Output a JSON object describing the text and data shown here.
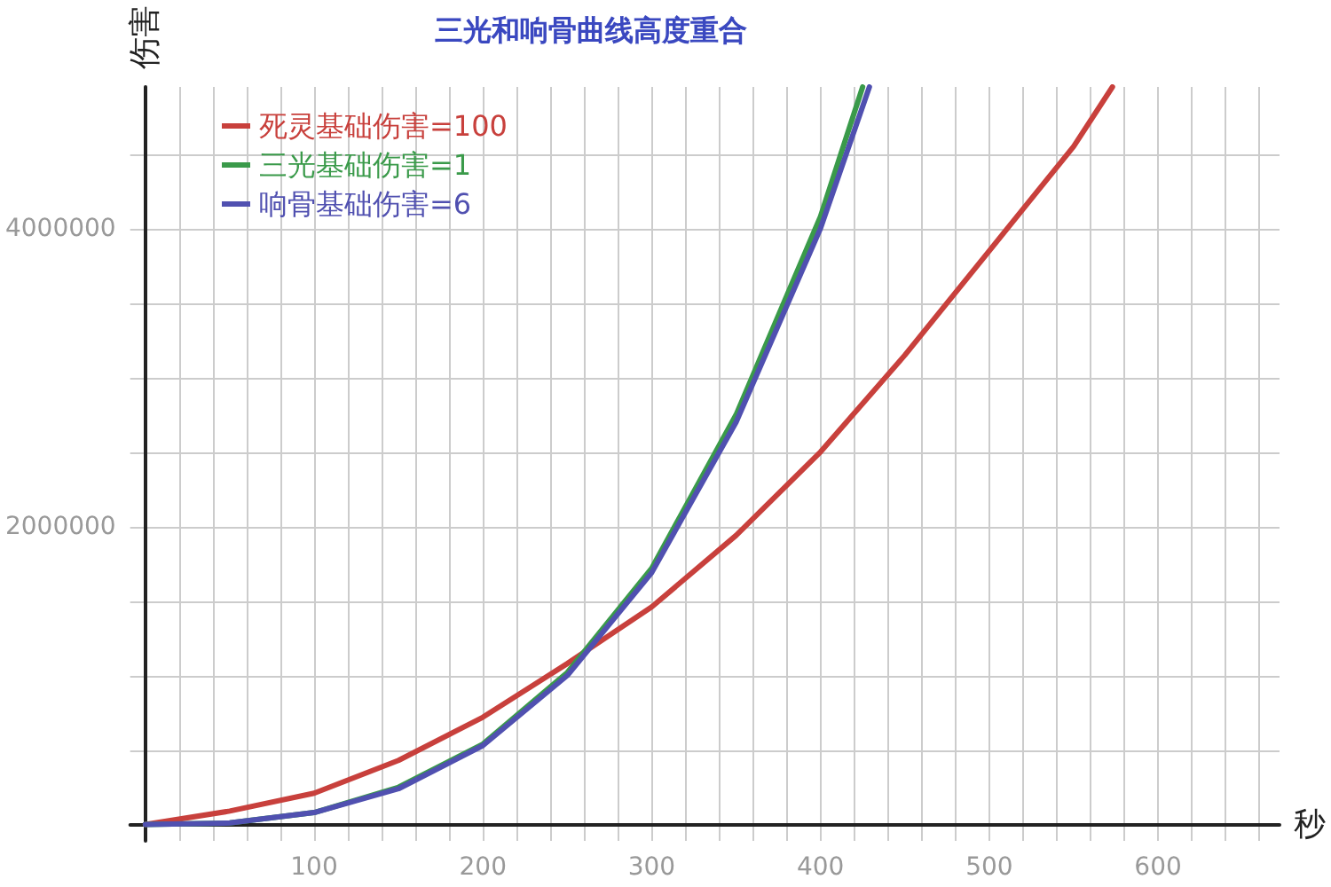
{
  "chart_data": {
    "type": "line",
    "title": "三光和响骨曲线高度重合",
    "xlabel": "秒",
    "ylabel": "伤害",
    "xlim": [
      -9,
      672
    ],
    "ylim": [
      -110000,
      4950000
    ],
    "xticks": [
      {
        "value": 0,
        "label": null
      },
      {
        "value": 20,
        "label": null
      },
      {
        "value": 40,
        "label": null
      },
      {
        "value": 60,
        "label": null
      },
      {
        "value": 80,
        "label": null
      },
      100,
      {
        "value": 120,
        "label": null
      },
      {
        "value": 140,
        "label": null
      },
      {
        "value": 160,
        "label": null
      },
      {
        "value": 180,
        "label": null
      },
      200,
      {
        "value": 220,
        "label": null
      },
      {
        "value": 240,
        "label": null
      },
      {
        "value": 260,
        "label": null
      },
      {
        "value": 280,
        "label": null
      },
      300,
      {
        "value": 320,
        "label": null
      },
      {
        "value": 340,
        "label": null
      },
      {
        "value": 360,
        "label": null
      },
      {
        "value": 380,
        "label": null
      },
      400,
      {
        "value": 420,
        "label": null
      },
      {
        "value": 440,
        "label": null
      },
      {
        "value": 460,
        "label": null
      },
      {
        "value": 480,
        "label": null
      },
      500,
      {
        "value": 520,
        "label": null
      },
      {
        "value": 540,
        "label": null
      },
      {
        "value": 560,
        "label": null
      },
      {
        "value": 580,
        "label": null
      },
      600,
      {
        "value": 620,
        "label": null
      },
      {
        "value": 640,
        "label": null
      },
      {
        "value": 660,
        "label": null
      }
    ],
    "yticks": [
      {
        "value": 0,
        "label": null
      },
      {
        "value": 500000,
        "label": null
      },
      {
        "value": 1000000,
        "label": null
      },
      {
        "value": 1500000,
        "label": null
      },
      2000000,
      {
        "value": 2500000,
        "label": null
      },
      {
        "value": 3000000,
        "label": null
      },
      {
        "value": 3500000,
        "label": null
      },
      4000000,
      {
        "value": 4500000,
        "label": null
      }
    ],
    "grid": true,
    "legend": "top left",
    "marker": "none",
    "line_style": "solid",
    "series": [
      {
        "name": "死灵基础伤害=100",
        "color": "#c8403c",
        "x": [
          0,
          50,
          100,
          150,
          200,
          250,
          300,
          350,
          400,
          450,
          500,
          550,
          573
        ],
        "values": [
          0,
          90000,
          210000,
          430000,
          720000,
          1080000,
          1460000,
          1940000,
          2500000,
          3150000,
          3850000,
          4550000,
          4950000
        ]
      },
      {
        "name": "三光基础伤害=1",
        "color": "#3a9a4a",
        "x": [
          0,
          50,
          100,
          150,
          200,
          250,
          300,
          350,
          400,
          425
        ],
        "values": [
          0,
          10000,
          80000,
          250000,
          540000,
          1020000,
          1720000,
          2750000,
          4080000,
          4950000
        ]
      },
      {
        "name": "响骨基础伤害=6",
        "color": "#5050b0",
        "x": [
          0,
          50,
          100,
          150,
          200,
          250,
          300,
          350,
          400,
          429
        ],
        "values": [
          0,
          10000,
          80000,
          240000,
          530000,
          1000000,
          1690000,
          2700000,
          4000000,
          4950000
        ]
      }
    ]
  }
}
